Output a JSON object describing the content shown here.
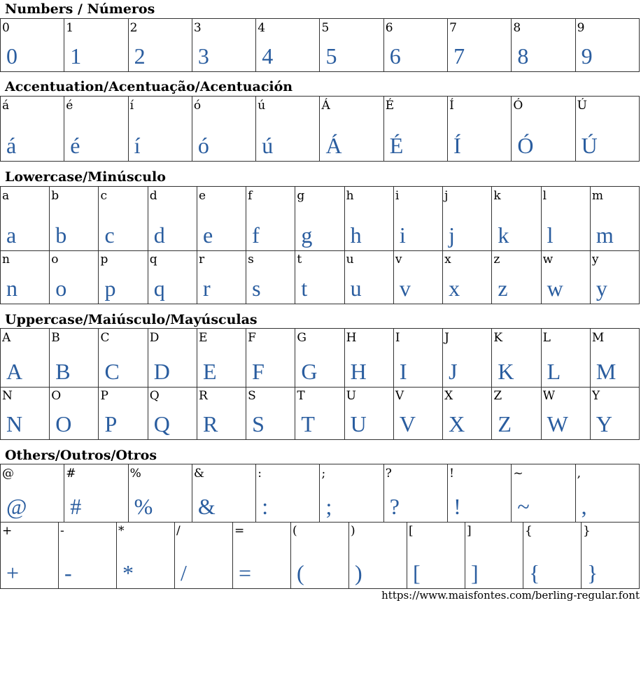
{
  "accent_color": "#2a5d9f",
  "sections": [
    {
      "title": "Numbers / Números",
      "rows": [
        [
          "0",
          "1",
          "2",
          "3",
          "4",
          "5",
          "6",
          "7",
          "8",
          "9"
        ]
      ]
    },
    {
      "title": "Accentuation/Acentuação/Acentuación",
      "rows": [
        [
          "á",
          "é",
          "í",
          "ó",
          "ú",
          "Á",
          "É",
          "Í",
          "Ó",
          "Ú"
        ]
      ]
    },
    {
      "title": "Lowercase/Minúsculo",
      "rows": [
        [
          "a",
          "b",
          "c",
          "d",
          "e",
          "f",
          "g",
          "h",
          "i",
          "j",
          "k",
          "l",
          "m"
        ],
        [
          "n",
          "o",
          "p",
          "q",
          "r",
          "s",
          "t",
          "u",
          "v",
          "x",
          "z",
          "w",
          "y"
        ]
      ]
    },
    {
      "title": "Uppercase/Maiúsculo/Mayúsculas",
      "rows": [
        [
          "A",
          "B",
          "C",
          "D",
          "E",
          "F",
          "G",
          "H",
          "I",
          "J",
          "K",
          "L",
          "M"
        ],
        [
          "N",
          "O",
          "P",
          "Q",
          "R",
          "S",
          "T",
          "U",
          "V",
          "X",
          "Z",
          "W",
          "Y"
        ]
      ]
    },
    {
      "title": "Others/Outros/Otros",
      "rows": [
        [
          "@",
          "#",
          "%",
          "&",
          ":",
          ";",
          "?",
          "!",
          "~",
          ","
        ],
        [
          "+",
          "-",
          "*",
          "/",
          "=",
          "(",
          ")",
          "[",
          "]",
          "{",
          "}"
        ]
      ]
    }
  ],
  "footer": {
    "url": "https://www.maisfontes.com/berling-regular.font"
  }
}
